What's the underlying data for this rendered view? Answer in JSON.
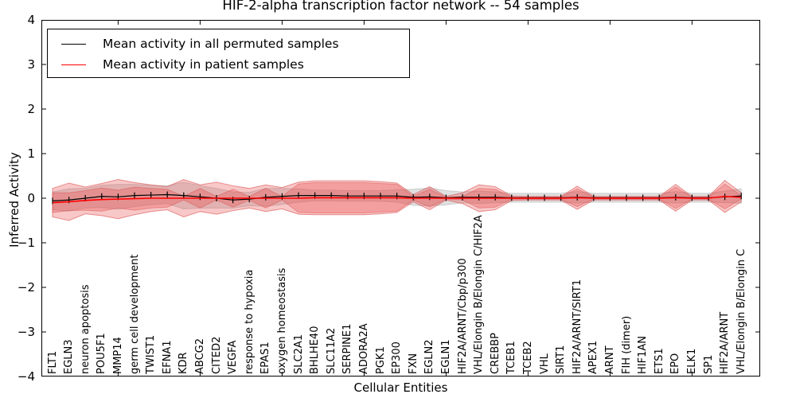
{
  "title": "HIF-2-alpha transcription factor network -- 54 samples",
  "axes": {
    "xlabel": "Cellular Entities",
    "ylabel": "Inferred Activity",
    "y_ticks": [
      "4",
      "3",
      "2",
      "1",
      "0",
      "−1",
      "−2",
      "−3",
      "−4"
    ],
    "ylim": [
      -4,
      4
    ],
    "grid": false
  },
  "legend": {
    "position": "upper left",
    "items": [
      {
        "label": "Mean activity in all permuted samples",
        "color": "#000000"
      },
      {
        "label": "Mean activity in patient samples",
        "color": "#ff0000"
      }
    ]
  },
  "colors": {
    "permuted_line": "#000000",
    "patient_line": "#ff0000",
    "permuted_band_fill": "#bbbbbb",
    "patient_band_fill": "#e84a4a",
    "spine": "#000000",
    "background": "#ffffff"
  },
  "chart_data": {
    "type": "area",
    "title": "HIF-2-alpha transcription factor network -- 54 samples",
    "xlabel": "Cellular Entities",
    "ylabel": "Inferred Activity",
    "ylim": [
      -4,
      4
    ],
    "categories": [
      "FLT1",
      "EGLN3",
      "neuron apoptosis",
      "POU5F1",
      "MMP14",
      "germ cell development",
      "TWIST1",
      "EFNA1",
      "KDR",
      "ABCG2",
      "CITED2",
      "VEGFA",
      "response to hypoxia",
      "EPAS1",
      "oxygen homeostasis",
      "SLC2A1",
      "BHLHE40",
      "SLC11A2",
      "SERPINE1",
      "ADORA2A",
      "PGK1",
      "EP300",
      "FXN",
      "EGLN2",
      "EGLN1",
      "HIF2A/ARNT/Cbp/p300",
      "VHL/Elongin B/Elongin C/HIF2A",
      "CREBBP",
      "TCEB1",
      "TCEB2",
      "VHL",
      "SIRT1",
      "HIF2A/ARNT/SIRT1",
      "APEX1",
      "ARNT",
      "FIH (dimer)",
      "HIF1AN",
      "ETS1",
      "EPO",
      "ELK1",
      "SP1",
      "HIF2A/ARNT",
      "VHL/Elongin B/Elongin C"
    ],
    "series": [
      {
        "name": "Mean activity in all permuted samples",
        "values": [
          -0.06,
          -0.04,
          0.0,
          0.04,
          0.03,
          0.06,
          0.07,
          0.08,
          0.06,
          0.03,
          0.0,
          -0.04,
          -0.02,
          0.02,
          0.04,
          0.06,
          0.06,
          0.06,
          0.05,
          0.05,
          0.05,
          0.05,
          0.02,
          0.03,
          0.01,
          0.02,
          0.02,
          0.02,
          0.01,
          0.01,
          0.01,
          0.01,
          0.02,
          0.01,
          0.01,
          0.01,
          0.01,
          0.01,
          0.02,
          0.01,
          0.01,
          0.03,
          0.05
        ],
        "band_halfwidth": [
          0.2,
          0.25,
          0.22,
          0.25,
          0.28,
          0.25,
          0.22,
          0.2,
          0.3,
          0.25,
          0.22,
          0.18,
          0.15,
          0.2,
          0.18,
          0.15,
          0.12,
          0.12,
          0.12,
          0.12,
          0.12,
          0.14,
          0.18,
          0.2,
          0.16,
          0.12,
          0.14,
          0.12,
          0.1,
          0.1,
          0.1,
          0.1,
          0.13,
          0.1,
          0.1,
          0.1,
          0.1,
          0.1,
          0.13,
          0.1,
          0.1,
          0.13,
          0.16
        ]
      },
      {
        "name": "Mean activity in patient samples",
        "values": [
          -0.1,
          -0.08,
          -0.05,
          -0.03,
          -0.02,
          -0.01,
          0.0,
          0.0,
          0.0,
          0.0,
          0.0,
          0.0,
          0.0,
          0.0,
          0.0,
          0.0,
          0.01,
          0.01,
          0.01,
          0.01,
          0.01,
          0.01,
          0.0,
          0.0,
          0.0,
          0.0,
          0.0,
          0.0,
          0.0,
          0.0,
          0.0,
          0.0,
          0.01,
          0.0,
          0.0,
          0.0,
          0.0,
          0.0,
          0.01,
          0.0,
          0.0,
          0.04,
          0.02
        ],
        "band_halfwidth": [
          0.32,
          0.42,
          0.3,
          0.36,
          0.44,
          0.36,
          0.3,
          0.26,
          0.42,
          0.3,
          0.36,
          0.28,
          0.22,
          0.3,
          0.24,
          0.36,
          0.38,
          0.38,
          0.38,
          0.38,
          0.36,
          0.33,
          0.08,
          0.26,
          0.04,
          0.12,
          0.3,
          0.26,
          0.05,
          0.04,
          0.04,
          0.04,
          0.26,
          0.04,
          0.04,
          0.04,
          0.04,
          0.04,
          0.3,
          0.04,
          0.04,
          0.36,
          0.1
        ],
        "band_inner_halfwidth": [
          0.22,
          0.2,
          0.22,
          0.26,
          0.2,
          0.26,
          0.22,
          0.2,
          0.04,
          0.22,
          0.04,
          0.2,
          0.04,
          0.22,
          0.04,
          0.32,
          0.34,
          0.34,
          0.34,
          0.34,
          0.32,
          0.3,
          0.04,
          0.2,
          0.02,
          0.04,
          0.22,
          0.2,
          0.02,
          0.02,
          0.02,
          0.02,
          0.2,
          0.02,
          0.02,
          0.02,
          0.02,
          0.02,
          0.24,
          0.02,
          0.02,
          0.28,
          0.04
        ]
      }
    ]
  }
}
